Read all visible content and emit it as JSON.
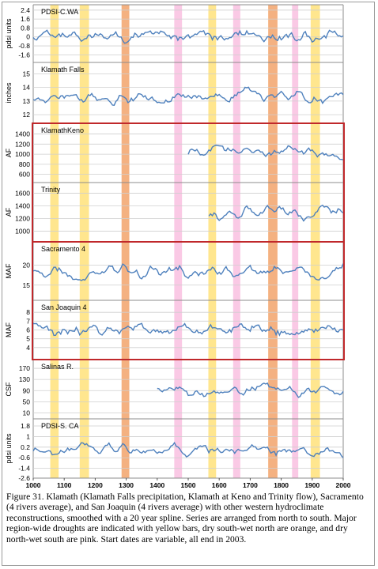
{
  "chart_data": {
    "type": "line",
    "xlim": [
      1000,
      2000
    ],
    "xticks": [
      "1000",
      "1100",
      "1200",
      "1300",
      "1400",
      "1500",
      "1600",
      "1700",
      "1800",
      "1900",
      "2000"
    ],
    "bands": [
      {
        "kind": "major region-wide drought",
        "color": "#ffe27a",
        "ranges": [
          [
            1055,
            1082
          ],
          [
            1150,
            1180
          ],
          [
            1565,
            1590
          ],
          [
            1895,
            1925
          ]
        ]
      },
      {
        "kind": "dry south-wet north",
        "color": "#f2a36b",
        "ranges": [
          [
            1285,
            1310
          ],
          [
            1758,
            1788
          ]
        ]
      },
      {
        "kind": "dry north-wet south",
        "color": "#f9bfe0",
        "ranges": [
          [
            1455,
            1480
          ],
          [
            1645,
            1668
          ],
          [
            1835,
            1855
          ]
        ]
      }
    ],
    "highlight_color": "#c0282b",
    "panels": [
      {
        "name": "PDSI-C.WA",
        "ylabel": "pdsi units",
        "yticks": [
          "2.4",
          "1.6",
          "0.8",
          "0",
          "-0.8",
          "-1.6"
        ],
        "ylim": [
          -2.0,
          2.6
        ],
        "start": 1000,
        "seed": 1,
        "amp": 1.1,
        "center": 0
      },
      {
        "name": "Klamath Falls",
        "ylabel": "inches",
        "yticks": [
          "15",
          "14",
          "13",
          "12"
        ],
        "ylim": [
          11.6,
          15.6
        ],
        "start": 1000,
        "seed": 2,
        "amp": 0.9,
        "center": 13.4
      },
      {
        "name": "KlamathKeno",
        "ylabel": "AF",
        "yticks": [
          "1400",
          "1200",
          "1000",
          "800",
          "600"
        ],
        "ylim": [
          500,
          1550
        ],
        "start": 1495,
        "seed": 3,
        "amp": 230,
        "center": 1030
      },
      {
        "name": "Trinity",
        "ylabel": "AF",
        "yticks": [
          "1600",
          "1400",
          "1200",
          "1000"
        ],
        "ylim": [
          880,
          1720
        ],
        "start": 1565,
        "seed": 4,
        "amp": 220,
        "center": 1280
      },
      {
        "name": "Sacramento 4",
        "ylabel": "MAF",
        "yticks": [
          "20",
          "15"
        ],
        "ylim": [
          12,
          25
        ],
        "start": 1000,
        "seed": 5,
        "amp": 3.2,
        "center": 18.2
      },
      {
        "name": "San Joaquin 4",
        "ylabel": "MAF",
        "yticks": [
          "8",
          "7",
          "6",
          "5",
          "4"
        ],
        "ylim": [
          3,
          9
        ],
        "start": 1000,
        "seed": 6,
        "amp": 1.5,
        "center": 6
      },
      {
        "name": "Salinas R.",
        "ylabel": "CSF",
        "yticks": [
          "170",
          "130",
          "90",
          "50",
          "10"
        ],
        "ylim": [
          0,
          190
        ],
        "start": 1400,
        "seed": 7,
        "amp": 40,
        "center": 88
      },
      {
        "name": "PDSI-S. CA",
        "ylabel": "pdsi units",
        "yticks": [
          "1.8",
          "1",
          "0.2",
          "-0.6",
          "-1.4"
        ],
        "ylim": [
          -1.9,
          2.1
        ],
        "start": 1000,
        "seed": 8,
        "amp": 0.85,
        "center": 0,
        "extra_tick": "-2.6"
      }
    ]
  },
  "caption": "Figure 31. Klamath (Klamath Falls precipitation, Klamath at Keno and Trinity flow), Sacramento (4 rivers average), and San Joaquin (4 rivers average) with other western hydroclimate reconstructions, smoothed with a 20 year spline.  Series are arranged from north to south. Major region-wide droughts are indicated with yellow bars, dry south-wet north are orange, and dry north-wet south are pink. Start dates are variable, all end in 2003."
}
